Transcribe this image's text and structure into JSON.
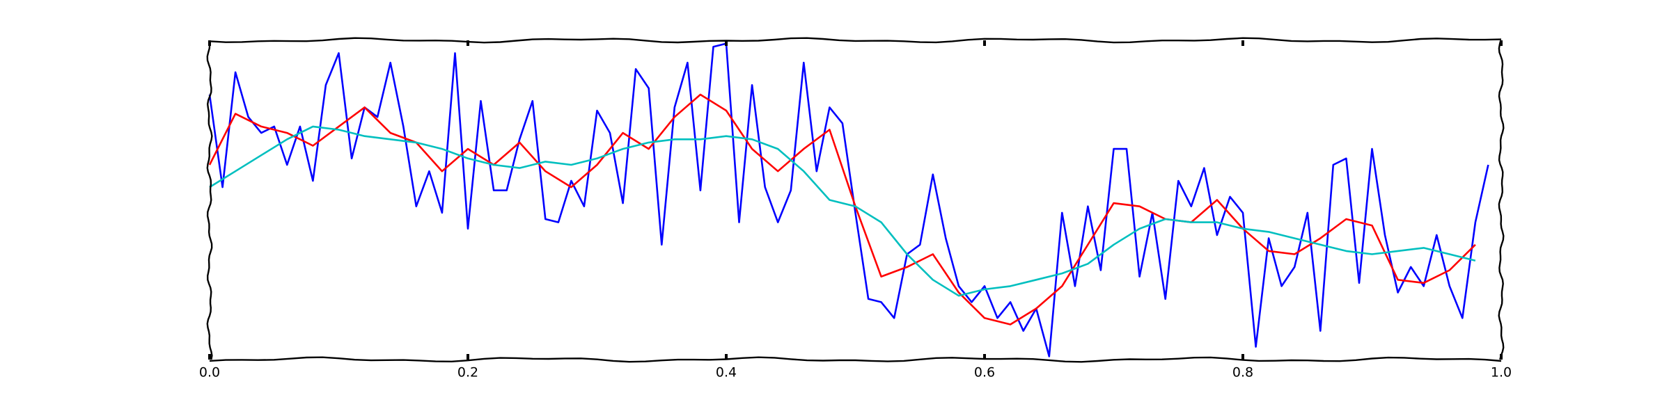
{
  "chart_data": {
    "type": "line",
    "xlim": [
      0,
      1
    ],
    "ylim": [
      0,
      1
    ],
    "xticks": [
      {
        "value": 0,
        "label": "0.0"
      },
      0.2,
      0.4,
      0.6,
      0.8,
      {
        "value": 1,
        "label": "1.0"
      }
    ],
    "series": [
      {
        "color": "#0000ff",
        "x": [
          0.0,
          0.01,
          0.02,
          0.03,
          0.04,
          0.05,
          0.06,
          0.07,
          0.08,
          0.09,
          0.1,
          0.11,
          0.12,
          0.13,
          0.14,
          0.15,
          0.16,
          0.17,
          0.18,
          0.19,
          0.2,
          0.21,
          0.22,
          0.23,
          0.24,
          0.25,
          0.26,
          0.27,
          0.28,
          0.29,
          0.3,
          0.31,
          0.32,
          0.33,
          0.34,
          0.35,
          0.36,
          0.37,
          0.38,
          0.39,
          0.4,
          0.41,
          0.42,
          0.43,
          0.44,
          0.45,
          0.46,
          0.47,
          0.48,
          0.49,
          0.5,
          0.51,
          0.52,
          0.53,
          0.54,
          0.55,
          0.56,
          0.57,
          0.58,
          0.59,
          0.6,
          0.61,
          0.62,
          0.63,
          0.64,
          0.65,
          0.66,
          0.67,
          0.68,
          0.69,
          0.7,
          0.71,
          0.72,
          0.73,
          0.74,
          0.75,
          0.76,
          0.77,
          0.78,
          0.79,
          0.8,
          0.81,
          0.82,
          0.83,
          0.84,
          0.85,
          0.86,
          0.87,
          0.88,
          0.89,
          0.9,
          0.91,
          0.92,
          0.93,
          0.94,
          0.95,
          0.96,
          0.97,
          0.98,
          0.99
        ],
        "values": [
          0.83,
          0.54,
          0.9,
          0.76,
          0.71,
          0.73,
          0.61,
          0.73,
          0.56,
          0.86,
          0.96,
          0.63,
          0.79,
          0.76,
          0.93,
          0.73,
          0.48,
          0.59,
          0.46,
          0.96,
          0.41,
          0.81,
          0.53,
          0.53,
          0.69,
          0.81,
          0.44,
          0.43,
          0.56,
          0.48,
          0.78,
          0.71,
          0.49,
          0.91,
          0.85,
          0.36,
          0.79,
          0.93,
          0.53,
          0.98,
          0.99,
          0.43,
          0.86,
          0.54,
          0.43,
          0.53,
          0.93,
          0.59,
          0.79,
          0.74,
          0.46,
          0.19,
          0.18,
          0.13,
          0.33,
          0.36,
          0.58,
          0.38,
          0.23,
          0.18,
          0.23,
          0.13,
          0.18,
          0.09,
          0.16,
          0.01,
          0.46,
          0.23,
          0.48,
          0.28,
          0.66,
          0.66,
          0.26,
          0.46,
          0.19,
          0.56,
          0.48,
          0.6,
          0.39,
          0.51,
          0.46,
          0.04,
          0.38,
          0.23,
          0.29,
          0.46,
          0.09,
          0.61,
          0.63,
          0.24,
          0.66,
          0.39,
          0.21,
          0.29,
          0.23,
          0.39,
          0.23,
          0.13,
          0.43,
          0.61
        ]
      },
      {
        "color": "#ff0000",
        "x": [
          0.0,
          0.02,
          0.04,
          0.06,
          0.08,
          0.1,
          0.12,
          0.14,
          0.16,
          0.18,
          0.2,
          0.22,
          0.24,
          0.26,
          0.28,
          0.3,
          0.32,
          0.34,
          0.36,
          0.38,
          0.4,
          0.42,
          0.44,
          0.46,
          0.48,
          0.5,
          0.52,
          0.54,
          0.56,
          0.58,
          0.6,
          0.62,
          0.64,
          0.66,
          0.68,
          0.7,
          0.72,
          0.74,
          0.76,
          0.78,
          0.8,
          0.82,
          0.84,
          0.86,
          0.88,
          0.9,
          0.92,
          0.94,
          0.96,
          0.98
        ],
        "values": [
          0.61,
          0.77,
          0.73,
          0.71,
          0.67,
          0.73,
          0.79,
          0.71,
          0.68,
          0.59,
          0.66,
          0.61,
          0.68,
          0.59,
          0.54,
          0.61,
          0.71,
          0.66,
          0.76,
          0.83,
          0.78,
          0.66,
          0.59,
          0.66,
          0.72,
          0.48,
          0.26,
          0.29,
          0.33,
          0.21,
          0.13,
          0.11,
          0.16,
          0.23,
          0.36,
          0.49,
          0.48,
          0.44,
          0.43,
          0.5,
          0.41,
          0.34,
          0.33,
          0.38,
          0.44,
          0.42,
          0.25,
          0.24,
          0.28,
          0.36
        ]
      },
      {
        "color": "#00bfbf",
        "x": [
          0.0,
          0.02,
          0.04,
          0.06,
          0.08,
          0.1,
          0.12,
          0.14,
          0.16,
          0.18,
          0.2,
          0.22,
          0.24,
          0.26,
          0.28,
          0.3,
          0.32,
          0.34,
          0.36,
          0.38,
          0.4,
          0.42,
          0.44,
          0.46,
          0.48,
          0.5,
          0.52,
          0.54,
          0.56,
          0.58,
          0.6,
          0.62,
          0.64,
          0.66,
          0.68,
          0.7,
          0.72,
          0.74,
          0.76,
          0.78,
          0.8,
          0.82,
          0.84,
          0.86,
          0.88,
          0.9,
          0.92,
          0.94,
          0.96,
          0.98
        ],
        "values": [
          0.54,
          0.59,
          0.64,
          0.69,
          0.73,
          0.72,
          0.7,
          0.69,
          0.68,
          0.66,
          0.63,
          0.61,
          0.6,
          0.62,
          0.61,
          0.63,
          0.66,
          0.68,
          0.69,
          0.69,
          0.7,
          0.69,
          0.66,
          0.59,
          0.5,
          0.48,
          0.43,
          0.33,
          0.25,
          0.2,
          0.22,
          0.23,
          0.25,
          0.27,
          0.3,
          0.36,
          0.41,
          0.44,
          0.43,
          0.43,
          0.41,
          0.4,
          0.38,
          0.36,
          0.34,
          0.33,
          0.34,
          0.35,
          0.33,
          0.31
        ]
      }
    ]
  }
}
